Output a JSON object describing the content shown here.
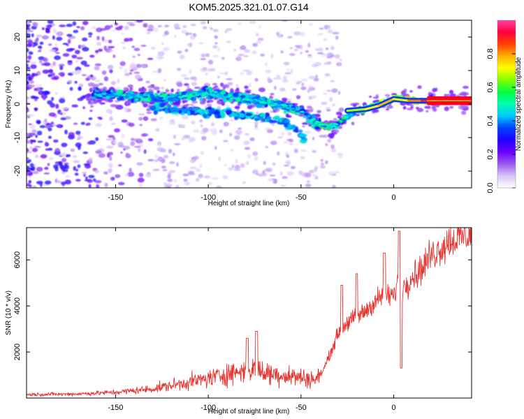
{
  "chart_data": [
    {
      "type": "heatmap",
      "title": "KOM5.2025.321.01.07.G14",
      "xlabel": "Height of straight line (km)",
      "ylabel": "Frequency (Hz)",
      "xlim": [
        -198,
        42
      ],
      "ylim": [
        -25,
        25
      ],
      "x_ticks": [
        -150,
        -100,
        -50,
        0
      ],
      "y_ticks": [
        -20,
        -10,
        0,
        10,
        20
      ],
      "colorbar": {
        "label": "Normalized spectral amplitude",
        "range": [
          0,
          1
        ],
        "ticks": [
          "0.0",
          "0.2",
          "0.4",
          "0.6",
          "0.8"
        ],
        "colors": [
          "#ffffff",
          "#d9c6f7",
          "#9b59ee",
          "#6a00ff",
          "#1f00ff",
          "#0040ff",
          "#00c8ff",
          "#00ffb0",
          "#00ff40",
          "#7fff00",
          "#ffff00",
          "#ffb000",
          "#ff4000",
          "#ff0040",
          "#ff40a0"
        ]
      },
      "ridge": {
        "x": [
          -160,
          -150,
          -140,
          -130,
          -120,
          -110,
          -100,
          -90,
          -80,
          -70,
          -60,
          -50,
          -45,
          -40,
          -35,
          -30,
          -25,
          -20,
          -15,
          -10,
          -5,
          0,
          5,
          10,
          20,
          30,
          42
        ],
        "y": [
          3,
          2.5,
          2.2,
          2,
          1.6,
          2.5,
          3.5,
          2.5,
          1.5,
          0.5,
          -0.5,
          -2,
          -4.5,
          -6,
          -7,
          -6,
          -3.5,
          -2,
          -1.5,
          -0.5,
          0.5,
          1.5,
          1.5,
          1,
          1,
          1,
          1
        ]
      },
      "branch": {
        "x": [
          -130,
          -110,
          -90,
          -80,
          -70,
          -60,
          -55,
          -50,
          -48
        ],
        "y": [
          -1,
          -2,
          -3,
          -3.5,
          -4,
          -5,
          -7,
          -9,
          -11
        ]
      }
    },
    {
      "type": "line",
      "xlabel": "Height of straight line (km)",
      "ylabel": "SNR (10 * v/v)",
      "xlim": [
        -198,
        42
      ],
      "ylim": [
        0,
        7400
      ],
      "x_ticks": [
        -150,
        -100,
        -50,
        0
      ],
      "y_ticks": [
        2000,
        4000,
        6000
      ],
      "color": "#e8322e",
      "envelope": {
        "x": [
          -198,
          -170,
          -150,
          -130,
          -120,
          -110,
          -100,
          -90,
          -80,
          -75,
          -70,
          -60,
          -50,
          -42,
          -38,
          -35,
          -30,
          -25,
          -20,
          -15,
          -10,
          -5,
          0,
          2,
          5,
          10,
          15,
          20,
          30,
          42
        ],
        "y": [
          150,
          180,
          250,
          400,
          550,
          700,
          850,
          1050,
          1200,
          1250,
          1100,
          1000,
          900,
          800,
          1200,
          1800,
          2800,
          3300,
          3500,
          3800,
          4200,
          4500,
          4400,
          5000,
          4800,
          5300,
          5600,
          6200,
          6800,
          7150
        ]
      },
      "spikes": [
        {
          "x": -79,
          "y": 2600
        },
        {
          "x": -74,
          "y": 2900
        },
        {
          "x": -28,
          "y": 4900
        },
        {
          "x": -20,
          "y": 5400
        },
        {
          "x": -5,
          "y": 6300
        },
        {
          "x": 3,
          "y": 7250
        },
        {
          "x": 4,
          "y": 1300
        }
      ]
    }
  ]
}
